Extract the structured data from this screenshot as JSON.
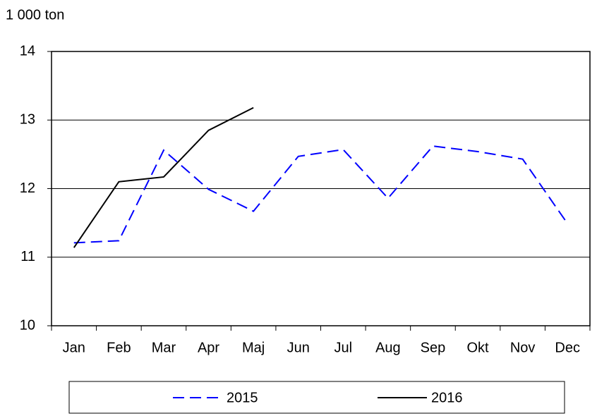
{
  "chart_data": {
    "type": "line",
    "y_axis_label": "1 000 ton",
    "categories": [
      "Jan",
      "Feb",
      "Mar",
      "Apr",
      "Maj",
      "Jun",
      "Jul",
      "Aug",
      "Sep",
      "Okt",
      "Nov",
      "Dec"
    ],
    "series": [
      {
        "name": "2015",
        "color": "#0000ff",
        "style": "dashed",
        "values": [
          11.21,
          11.24,
          12.56,
          11.99,
          11.67,
          12.47,
          12.57,
          11.86,
          12.62,
          12.54,
          12.43,
          11.49
        ]
      },
      {
        "name": "2016",
        "color": "#000000",
        "style": "solid",
        "values": [
          11.14,
          12.1,
          12.17,
          12.85,
          13.18,
          null,
          null,
          null,
          null,
          null,
          null,
          null
        ]
      }
    ],
    "ylim": [
      10,
      14
    ],
    "yticks": [
      10,
      11,
      12,
      13,
      14
    ],
    "grid": true,
    "legend": "bottom"
  }
}
